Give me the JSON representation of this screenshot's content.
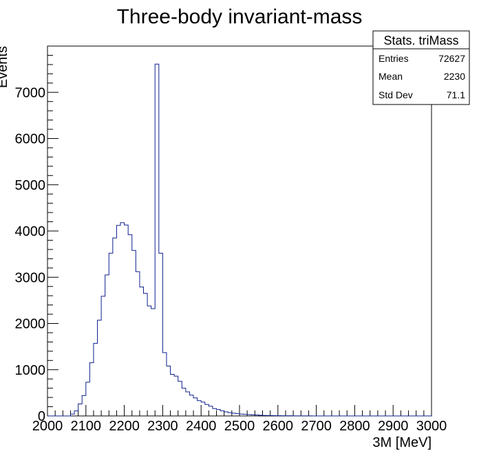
{
  "chart_data": {
    "type": "histogram",
    "title": "Three-body invariant-mass",
    "xlabel": "3M [MeV]",
    "ylabel": "Events",
    "xlim": [
      2000,
      3000
    ],
    "ylim": [
      0,
      8000
    ],
    "x_ticks": [
      2000,
      2100,
      2200,
      2300,
      2400,
      2500,
      2600,
      2700,
      2800,
      2900,
      3000
    ],
    "y_ticks": [
      0,
      1000,
      2000,
      3000,
      4000,
      5000,
      6000,
      7000
    ],
    "bin_width": 10,
    "bins_start": 2000,
    "line_color": "#0c1f8f",
    "values": [
      0,
      0,
      0,
      0,
      0,
      0,
      40,
      110,
      260,
      440,
      730,
      1150,
      1570,
      2070,
      2590,
      3050,
      3520,
      3850,
      4120,
      4180,
      4130,
      3920,
      3580,
      3120,
      2790,
      2650,
      2380,
      2320,
      7610,
      3520,
      1370,
      1080,
      900,
      860,
      750,
      600,
      520,
      450,
      390,
      330,
      300,
      250,
      210,
      160,
      140,
      110,
      90,
      70,
      60,
      50,
      40,
      35,
      30,
      25,
      20,
      15,
      12,
      10,
      8,
      6,
      5,
      4,
      3,
      3,
      2,
      2,
      1,
      1,
      1,
      0,
      0,
      0,
      0,
      0,
      0,
      0,
      0,
      0,
      0,
      0,
      0,
      0,
      0,
      0,
      0,
      0,
      0,
      0,
      0,
      0,
      0,
      0,
      0,
      0,
      0,
      0,
      0,
      0,
      0,
      0
    ],
    "legend": "none",
    "grid": false
  },
  "stats_box": {
    "title": "Stats. triMass",
    "rows": [
      {
        "label": "Entries",
        "value": "72627"
      },
      {
        "label": "Mean",
        "value": "2230"
      },
      {
        "label": "Std Dev",
        "value": "71.1"
      }
    ]
  }
}
